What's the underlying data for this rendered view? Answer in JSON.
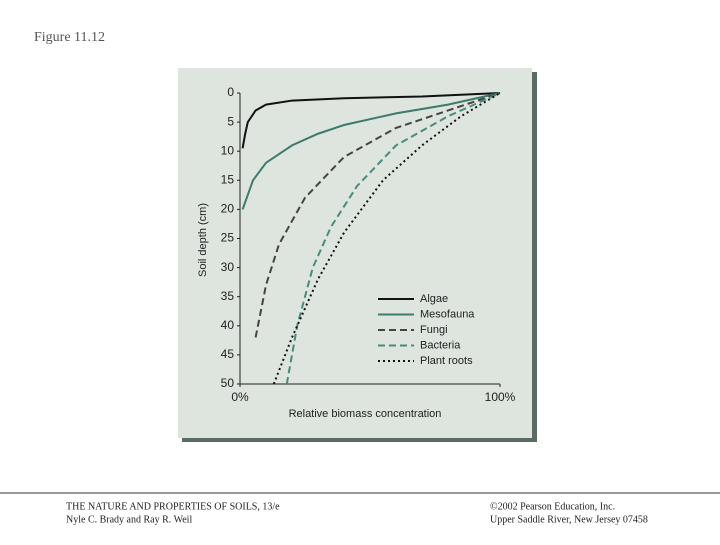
{
  "slide_title": "Figure 11.12",
  "chart_data": {
    "type": "line",
    "xlabel": "Relative biomass concentration",
    "ylabel": "Soil depth (cm)",
    "xlim": [
      0,
      100
    ],
    "ylim": [
      0,
      50
    ],
    "y_inverted": true,
    "xticks": [
      {
        "value": 0,
        "label": "0%"
      },
      {
        "value": 100,
        "label": "100%"
      }
    ],
    "yticks": [
      0,
      5,
      10,
      15,
      20,
      25,
      30,
      35,
      40,
      45,
      50
    ],
    "legend": "lower right",
    "series": [
      {
        "name": "Algae",
        "color": "#111111",
        "dash": "solid",
        "x": [
          1,
          2,
          3,
          6,
          10,
          20,
          40,
          70,
          100
        ],
        "values": [
          9.5,
          7,
          5,
          3,
          2,
          1.3,
          0.9,
          0.6,
          0
        ]
      },
      {
        "name": "Mesofauna",
        "color": "#3d7a6e",
        "dash": "solid",
        "x": [
          1,
          5,
          10,
          20,
          30,
          40,
          60,
          80,
          100
        ],
        "values": [
          20,
          15,
          12,
          9,
          7,
          5.5,
          3.5,
          2,
          0
        ]
      },
      {
        "name": "Fungi",
        "color": "#444444",
        "dash": "dashed",
        "x": [
          6,
          10,
          15,
          25,
          40,
          60,
          80,
          100
        ],
        "values": [
          42,
          33,
          26,
          18,
          11,
          6,
          3,
          0
        ]
      },
      {
        "name": "Bacteria",
        "color": "#4a8a7c",
        "dash": "dashed",
        "x": [
          18,
          22,
          28,
          35,
          45,
          60,
          80,
          100
        ],
        "values": [
          50,
          40,
          30,
          23,
          16,
          9,
          4,
          0
        ]
      },
      {
        "name": "Plant roots",
        "color": "#111111",
        "dash": "dotted",
        "x": [
          13,
          20,
          30,
          40,
          55,
          70,
          85,
          100
        ],
        "values": [
          50,
          42,
          32,
          24,
          15,
          9,
          4,
          0
        ]
      }
    ]
  },
  "footer": {
    "left": [
      "THE NATURE AND PROPERTIES OF SOILS, 13/e",
      "Nyle C. Brady and Ray R. Weil"
    ],
    "right": [
      "©2002 Pearson Education, Inc.",
      "Upper Saddle River, New Jersey 07458"
    ]
  }
}
